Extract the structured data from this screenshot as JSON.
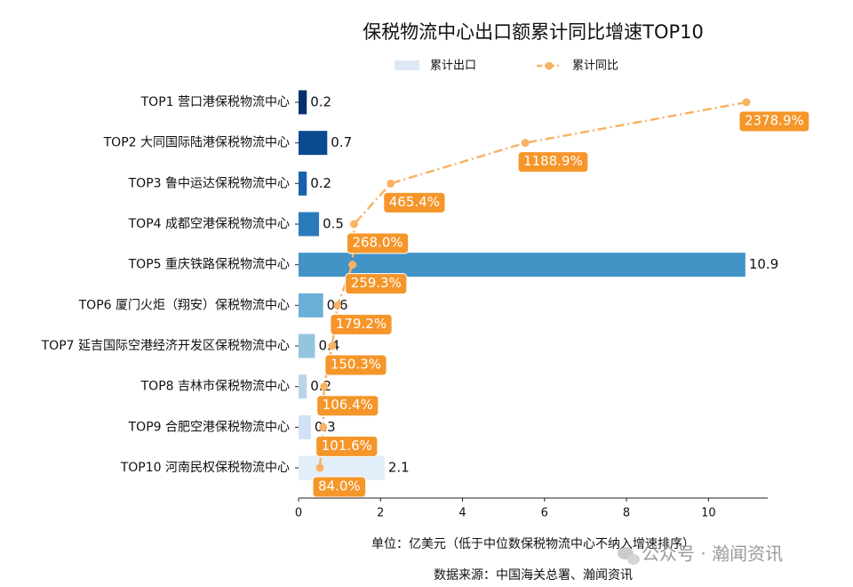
{
  "chart_data": {
    "type": "bar",
    "orientation": "horizontal",
    "title": "保税物流中心出口额累计同比增速TOP10",
    "categories": [
      "TOP1 营口港保税物流中心",
      "TOP2 大同国际陆港保税物流中心",
      "TOP3 鲁中运达保税物流中心",
      "TOP4 成都空港保税物流中心",
      "TOP5 重庆铁路保税物流中心",
      "TOP6 厦门火炬（翔安）保税物流中心",
      "TOP7 延吉国际空港经济开发区保税物流中心",
      "TOP8 吉林市保税物流中心",
      "TOP9 合肥空港保税物流中心",
      "TOP10 河南民权保税物流中心"
    ],
    "series": [
      {
        "name": "累计出口",
        "type": "bar",
        "color": "#dce9f5",
        "colors": [
          "#08306b",
          "#0b4a91",
          "#1662aa",
          "#2b7bba",
          "#4393c6",
          "#6baed6",
          "#94c4df",
          "#b9d5ea",
          "#d0e2f3",
          "#e2eef9"
        ],
        "values": [
          0.2,
          0.7,
          0.2,
          0.5,
          10.9,
          0.6,
          0.4,
          0.2,
          0.3,
          2.1
        ]
      },
      {
        "name": "累计同比",
        "type": "line",
        "axis": "x2",
        "color": "#f7b366",
        "label_color": "#f5962a",
        "values": [
          2378.9,
          1188.9,
          465.4,
          268.0,
          259.3,
          179.2,
          150.3,
          106.4,
          101.6,
          84.0
        ],
        "value_labels": [
          "2378.9%",
          "1188.9%",
          "465.4%",
          "268.0%",
          "259.3%",
          "179.2%",
          "150.3%",
          "106.4%",
          "101.6%",
          "84.0%"
        ]
      }
    ],
    "xlim": [
      0,
      11.445
    ],
    "xticks": [
      0,
      2,
      4,
      6,
      8,
      10
    ],
    "x2lim": [
      -30.7,
      2493.6
    ],
    "x_label": "单位：亿美元（低于中位数保税物流中心不纳入增速排序）",
    "source": "数据来源：中国海关总署、瀚闻资讯",
    "watermark": "公众号 · 瀚闻资讯",
    "legend": "top"
  }
}
